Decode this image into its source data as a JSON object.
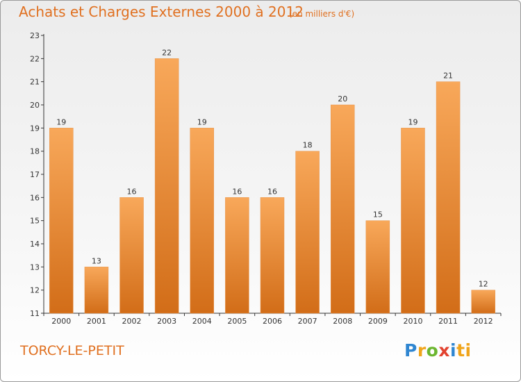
{
  "title": "Achats et Charges Externes 2000 à 2012",
  "subtitle": "(en milliers d'€)",
  "city": "TORCY-LE-PETIT",
  "logo": {
    "letters": [
      "P",
      "r",
      "o",
      "x",
      "i",
      "ti"
    ]
  },
  "colors": {
    "accent": "#e07020",
    "bar_top": "#f8a85a",
    "bar_bottom": "#d26d18",
    "axis": "#333333"
  },
  "chart_data": {
    "type": "bar",
    "title": "Achats et Charges Externes 2000 à 2012",
    "xlabel": "",
    "ylabel": "",
    "categories": [
      "2000",
      "2001",
      "2002",
      "2003",
      "2004",
      "2005",
      "2006",
      "2007",
      "2008",
      "2009",
      "2010",
      "2011",
      "2012"
    ],
    "values": [
      19,
      13,
      16,
      22,
      19,
      16,
      16,
      18,
      20,
      15,
      19,
      21,
      12
    ],
    "ylim": [
      11,
      23
    ],
    "yticks": [
      11,
      12,
      13,
      14,
      15,
      16,
      17,
      18,
      19,
      20,
      21,
      22,
      23
    ],
    "grid": false,
    "data_labels": true
  }
}
